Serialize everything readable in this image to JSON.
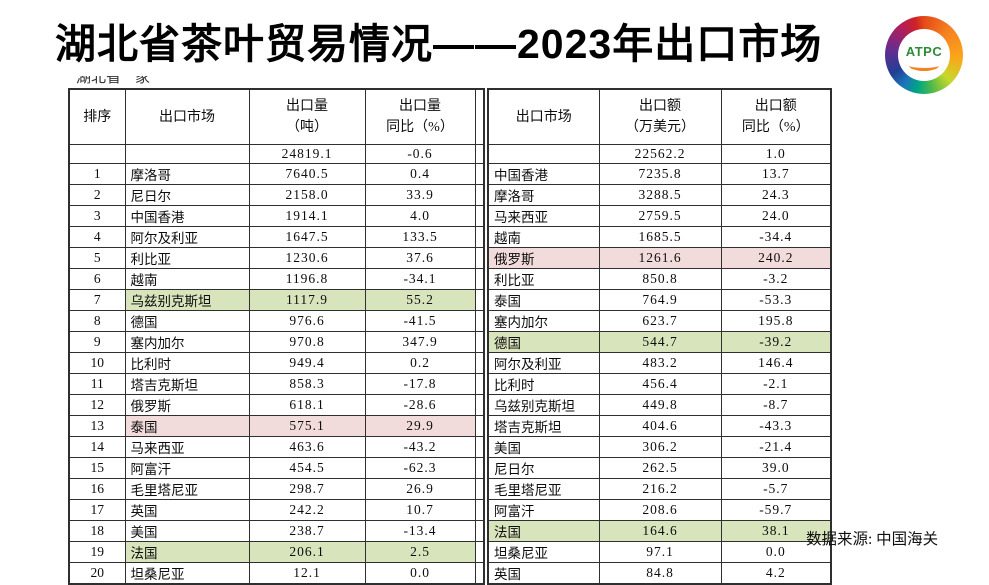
{
  "title": "湖北省茶叶贸易情况——2023年出口市场",
  "logo": {
    "text": "ATPC"
  },
  "source_note": "数据来源: 中国海关",
  "clipped_fragment": {
    "a": "湖北省",
    "b": "家"
  },
  "colors": {
    "highlight_green": "#d8e4bc",
    "highlight_pink": "#f2dcdb"
  },
  "left_table": {
    "headers": [
      "排序",
      "出口市场",
      "出口量\n（吨）",
      "出口量\n同比（%）"
    ],
    "rows": [
      {
        "cells": [
          "",
          "",
          "24819.1",
          "-0.6"
        ],
        "hl": null
      },
      {
        "cells": [
          "1",
          "摩洛哥",
          "7640.5",
          "0.4"
        ],
        "hl": null
      },
      {
        "cells": [
          "2",
          "尼日尔",
          "2158.0",
          "33.9"
        ],
        "hl": null
      },
      {
        "cells": [
          "3",
          "中国香港",
          "1914.1",
          "4.0"
        ],
        "hl": null
      },
      {
        "cells": [
          "4",
          "阿尔及利亚",
          "1647.5",
          "133.5"
        ],
        "hl": null
      },
      {
        "cells": [
          "5",
          "利比亚",
          "1230.6",
          "37.6"
        ],
        "hl": null
      },
      {
        "cells": [
          "6",
          "越南",
          "1196.8",
          "-34.1"
        ],
        "hl": null
      },
      {
        "cells": [
          "7",
          "乌兹别克斯坦",
          "1117.9",
          "55.2"
        ],
        "hl": "green"
      },
      {
        "cells": [
          "8",
          "德国",
          "976.6",
          "-41.5"
        ],
        "hl": null
      },
      {
        "cells": [
          "9",
          "塞内加尔",
          "970.8",
          "347.9"
        ],
        "hl": null
      },
      {
        "cells": [
          "10",
          "比利时",
          "949.4",
          "0.2"
        ],
        "hl": null
      },
      {
        "cells": [
          "11",
          "塔吉克斯坦",
          "858.3",
          "-17.8"
        ],
        "hl": null
      },
      {
        "cells": [
          "12",
          "俄罗斯",
          "618.1",
          "-28.6"
        ],
        "hl": null
      },
      {
        "cells": [
          "13",
          "泰国",
          "575.1",
          "29.9"
        ],
        "hl": "pink"
      },
      {
        "cells": [
          "14",
          "马来西亚",
          "463.6",
          "-43.2"
        ],
        "hl": null
      },
      {
        "cells": [
          "15",
          "阿富汗",
          "454.5",
          "-62.3"
        ],
        "hl": null
      },
      {
        "cells": [
          "16",
          "毛里塔尼亚",
          "298.7",
          "26.9"
        ],
        "hl": null
      },
      {
        "cells": [
          "17",
          "英国",
          "242.2",
          "10.7"
        ],
        "hl": null
      },
      {
        "cells": [
          "18",
          "美国",
          "238.7",
          "-13.4"
        ],
        "hl": null
      },
      {
        "cells": [
          "19",
          "法国",
          "206.1",
          "2.5"
        ],
        "hl": "green"
      },
      {
        "cells": [
          "20",
          "坦桑尼亚",
          "12.1",
          "0.0"
        ],
        "hl": null
      }
    ]
  },
  "right_table": {
    "headers": [
      "出口市场",
      "出口额\n（万美元）",
      "出口额\n同比（%）"
    ],
    "rows": [
      {
        "cells": [
          "",
          "22562.2",
          "1.0"
        ],
        "hl": null
      },
      {
        "cells": [
          "中国香港",
          "7235.8",
          "13.7"
        ],
        "hl": null
      },
      {
        "cells": [
          "摩洛哥",
          "3288.5",
          "24.3"
        ],
        "hl": null
      },
      {
        "cells": [
          "马来西亚",
          "2759.5",
          "24.0"
        ],
        "hl": null
      },
      {
        "cells": [
          "越南",
          "1685.5",
          "-34.4"
        ],
        "hl": null
      },
      {
        "cells": [
          "俄罗斯",
          "1261.6",
          "240.2"
        ],
        "hl": "pink"
      },
      {
        "cells": [
          "利比亚",
          "850.8",
          "-3.2"
        ],
        "hl": null
      },
      {
        "cells": [
          "泰国",
          "764.9",
          "-53.3"
        ],
        "hl": null
      },
      {
        "cells": [
          "塞内加尔",
          "623.7",
          "195.8"
        ],
        "hl": null
      },
      {
        "cells": [
          "德国",
          "544.7",
          "-39.2"
        ],
        "hl": "green"
      },
      {
        "cells": [
          "阿尔及利亚",
          "483.2",
          "146.4"
        ],
        "hl": null
      },
      {
        "cells": [
          "比利时",
          "456.4",
          "-2.1"
        ],
        "hl": null
      },
      {
        "cells": [
          "乌兹别克斯坦",
          "449.8",
          "-8.7"
        ],
        "hl": null
      },
      {
        "cells": [
          "塔吉克斯坦",
          "404.6",
          "-43.3"
        ],
        "hl": null
      },
      {
        "cells": [
          "美国",
          "306.2",
          "-21.4"
        ],
        "hl": null
      },
      {
        "cells": [
          "尼日尔",
          "262.5",
          "39.0"
        ],
        "hl": null
      },
      {
        "cells": [
          "毛里塔尼亚",
          "216.2",
          "-5.7"
        ],
        "hl": null
      },
      {
        "cells": [
          "阿富汗",
          "208.6",
          "-59.7"
        ],
        "hl": null
      },
      {
        "cells": [
          "法国",
          "164.6",
          "38.1"
        ],
        "hl": "green"
      },
      {
        "cells": [
          "坦桑尼亚",
          "97.1",
          "0.0"
        ],
        "hl": null
      },
      {
        "cells": [
          "英国",
          "84.8",
          "4.2"
        ],
        "hl": null
      }
    ]
  }
}
